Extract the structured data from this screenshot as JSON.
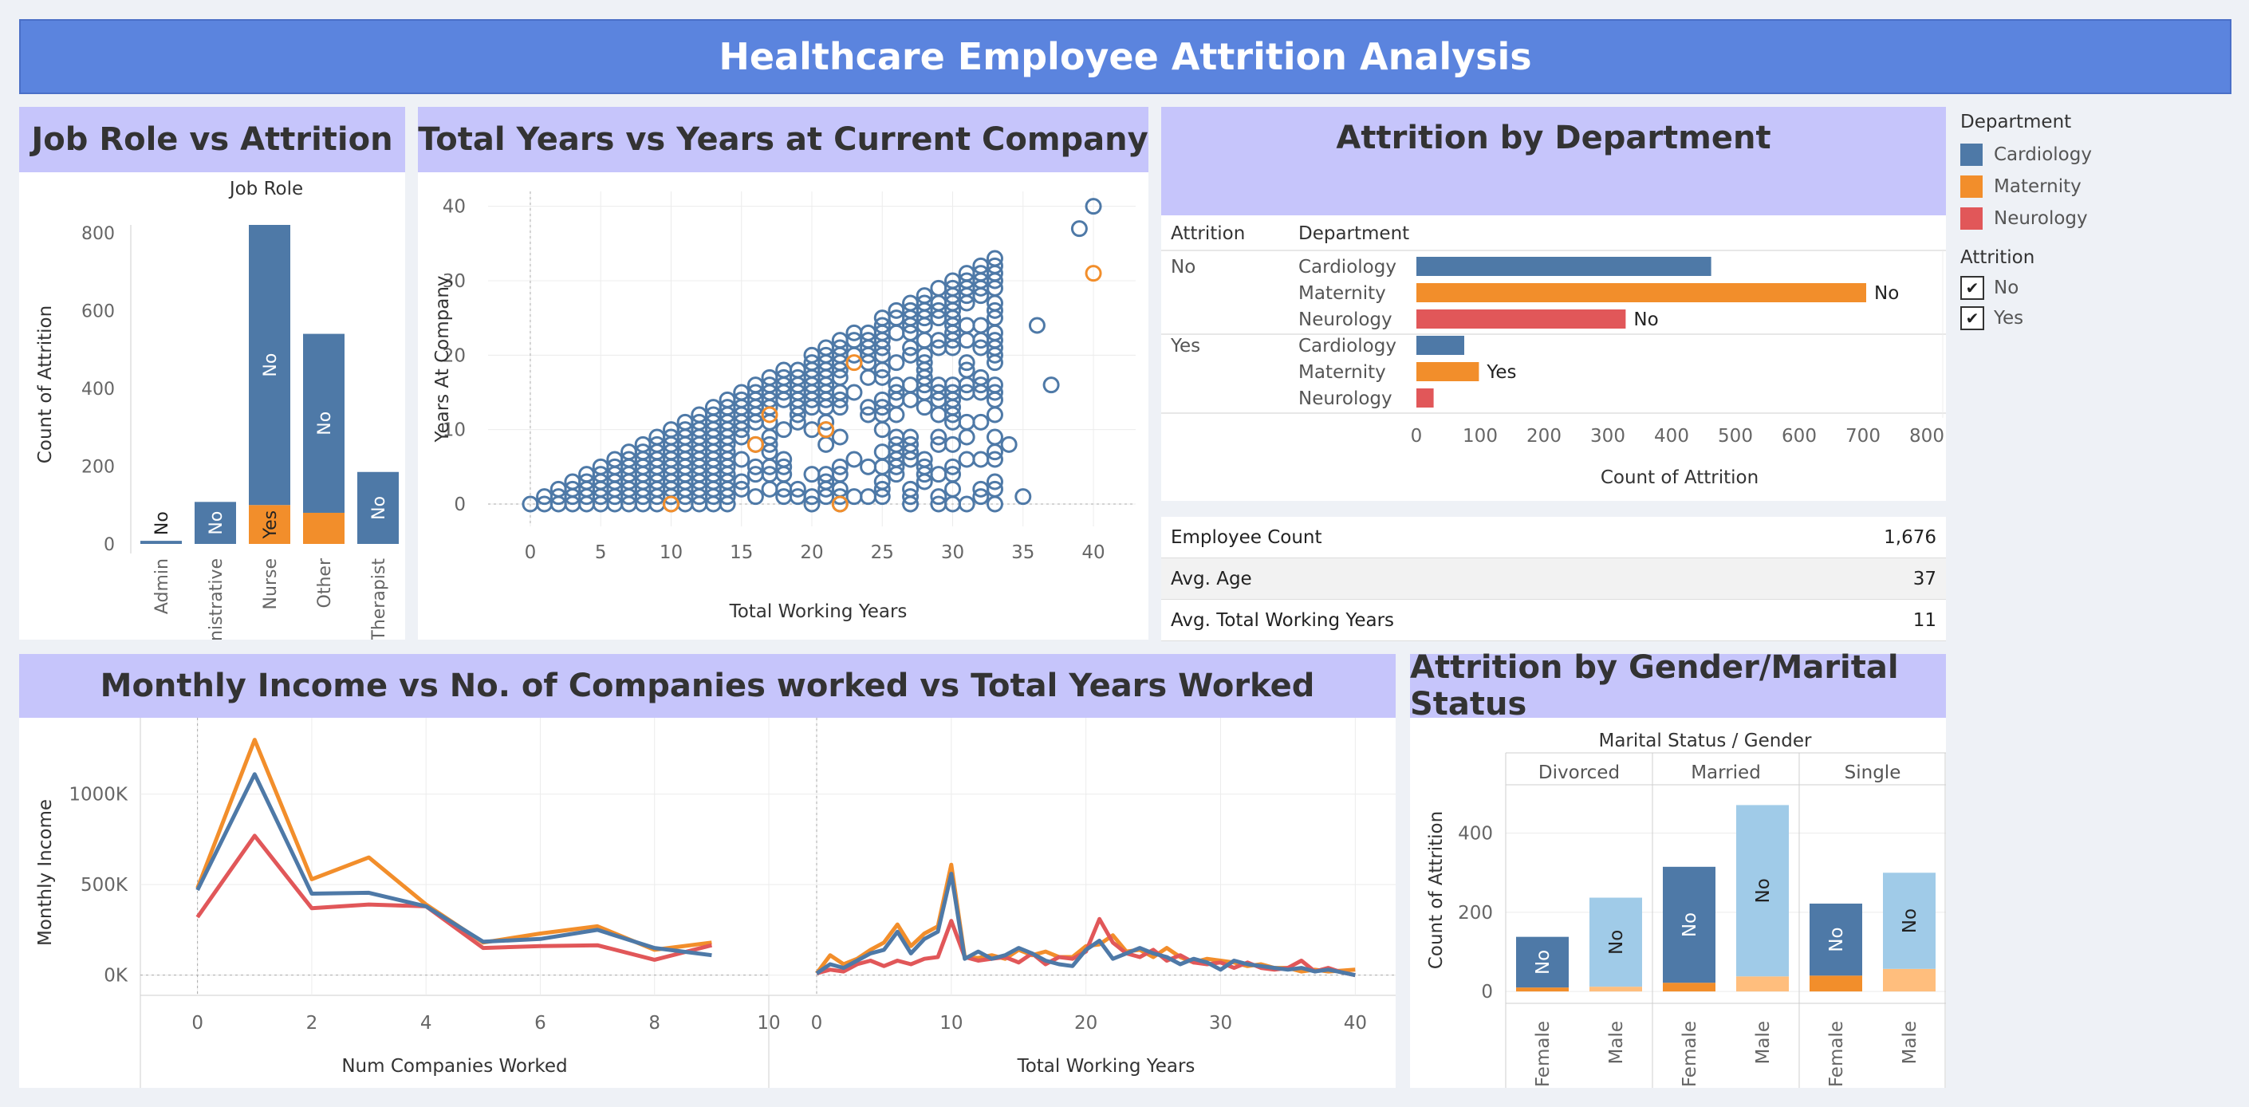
{
  "title": "Healthcare Employee Attrition Analysis",
  "colors": {
    "cardiology": "#4e79a7",
    "maternity": "#f28e2b",
    "neurology": "#e15759",
    "male_no": "#a0cbe8",
    "male_yes": "#ffbe7d",
    "banner": "#5b84de",
    "panel_title": "#c6c5fb"
  },
  "panels": {
    "job_role": "Job Role vs Attrition",
    "scatter": "Total Years vs Years at Current Company",
    "department": "Attrition by Department",
    "income": "Monthly Income vs No. of Companies worked vs Total Years Worked",
    "gender": "Attrition by Gender/Marital Status"
  },
  "legend": {
    "department_title": "Department",
    "departments": [
      {
        "label": "Cardiology",
        "color": "#4e79a7"
      },
      {
        "label": "Maternity",
        "color": "#f28e2b"
      },
      {
        "label": "Neurology",
        "color": "#e15759"
      }
    ],
    "attrition_title": "Attrition",
    "attrition": [
      {
        "label": "No",
        "checked": true
      },
      {
        "label": "Yes",
        "checked": true
      }
    ]
  },
  "kpis": [
    {
      "label": "Employee Count",
      "value": "1,676"
    },
    {
      "label": "Avg. Age",
      "value": "37"
    },
    {
      "label": "Avg. Total Working Years",
      "value": "11"
    }
  ],
  "chart_data": [
    {
      "id": "job_role",
      "type": "bar",
      "stacked": true,
      "header": "Job Role",
      "ylabel": "Count of Attrition",
      "ylim": [
        0,
        820
      ],
      "yticks": [
        0,
        200,
        400,
        600,
        800
      ],
      "categories": [
        "Admin",
        "Administrative",
        "Nurse",
        "Other",
        "Therapist"
      ],
      "series": [
        {
          "name": "No",
          "values": [
            8,
            108,
            720,
            460,
            185
          ],
          "label": "No",
          "color": "#4e79a7"
        },
        {
          "name": "Yes",
          "values": [
            0,
            0,
            100,
            80,
            0
          ],
          "label": "Yes",
          "color": "#f28e2b"
        }
      ]
    },
    {
      "id": "scatter",
      "type": "scatter",
      "xlabel": "Total Working Years",
      "ylabel": "Years At Company",
      "xlim": [
        -3,
        43
      ],
      "ylim": [
        -3,
        42
      ],
      "xticks": [
        0,
        5,
        10,
        15,
        20,
        25,
        30,
        35,
        40
      ],
      "yticks": [
        0,
        10,
        20,
        30,
        40
      ],
      "outliers": [
        [
          28,
          22
        ],
        [
          30,
          25
        ],
        [
          31,
          15
        ],
        [
          33,
          19
        ],
        [
          34,
          8
        ],
        [
          35,
          1
        ],
        [
          36,
          24
        ],
        [
          37,
          16
        ],
        [
          39,
          37
        ],
        [
          40,
          40
        ]
      ],
      "orange_points": [
        [
          10,
          0
        ],
        [
          16,
          8
        ],
        [
          21,
          10
        ],
        [
          22,
          0
        ],
        [
          23,
          19
        ],
        [
          40,
          31
        ],
        [
          17,
          12
        ]
      ]
    },
    {
      "id": "department",
      "type": "bar",
      "orientation": "horizontal",
      "col_headers": [
        "Attrition",
        "Department"
      ],
      "xlabel": "Count of Attrition",
      "xlim": [
        0,
        800
      ],
      "xticks": [
        0,
        100,
        200,
        300,
        400,
        500,
        600,
        700,
        800
      ],
      "groups": [
        {
          "attrition": "No",
          "rows": [
            {
              "department": "Cardiology",
              "value": 462,
              "color": "#4e79a7",
              "label": ""
            },
            {
              "department": "Maternity",
              "value": 705,
              "color": "#f28e2b",
              "label": "No"
            },
            {
              "department": "Neurology",
              "value": 328,
              "color": "#e15759",
              "label": "No"
            }
          ]
        },
        {
          "attrition": "Yes",
          "rows": [
            {
              "department": "Cardiology",
              "value": 75,
              "color": "#4e79a7",
              "label": ""
            },
            {
              "department": "Maternity",
              "value": 98,
              "color": "#f28e2b",
              "label": "Yes"
            },
            {
              "department": "Neurology",
              "value": 27,
              "color": "#e15759",
              "label": ""
            }
          ]
        }
      ]
    },
    {
      "id": "income_companies",
      "type": "line",
      "xlabel": "Num Companies Worked",
      "ylabel": "Monthly Income",
      "xlim": [
        -1,
        10
      ],
      "ylim": [
        -50000,
        1360000
      ],
      "xticks": [
        0,
        2,
        4,
        6,
        8,
        10
      ],
      "yticks": [
        {
          "v": 0,
          "label": "0K"
        },
        {
          "v": 500000,
          "label": "500K"
        },
        {
          "v": 1000000,
          "label": "1000K"
        }
      ],
      "x": [
        0,
        1,
        2,
        3,
        4,
        5,
        6,
        7,
        8,
        9
      ],
      "series": [
        {
          "name": "Maternity",
          "color": "#f28e2b",
          "values": [
            480000,
            1300000,
            530000,
            650000,
            390000,
            180000,
            230000,
            270000,
            140000,
            180000
          ]
        },
        {
          "name": "Neurology",
          "color": "#e15759",
          "values": [
            320000,
            770000,
            370000,
            390000,
            380000,
            150000,
            160000,
            165000,
            85000,
            165000
          ]
        },
        {
          "name": "Cardiology",
          "color": "#4e79a7",
          "values": [
            470000,
            1110000,
            450000,
            455000,
            380000,
            185000,
            200000,
            250000,
            150000,
            110000
          ]
        }
      ]
    },
    {
      "id": "income_years",
      "type": "line",
      "xlabel": "Total Working Years",
      "xlim": [
        0,
        43
      ],
      "ylim": [
        -50000,
        1360000
      ],
      "xticks": [
        0,
        10,
        20,
        30,
        40
      ],
      "x": [
        0,
        1,
        2,
        3,
        4,
        5,
        6,
        7,
        8,
        9,
        10,
        11,
        12,
        13,
        14,
        15,
        16,
        17,
        18,
        19,
        20,
        21,
        22,
        23,
        24,
        25,
        26,
        27,
        28,
        29,
        30,
        31,
        32,
        33,
        34,
        35,
        36,
        37,
        38,
        39,
        40
      ],
      "series": [
        {
          "name": "Maternity",
          "color": "#f28e2b",
          "values": [
            10000,
            110000,
            60000,
            90000,
            140000,
            180000,
            280000,
            160000,
            230000,
            270000,
            610000,
            100000,
            95000,
            110000,
            90000,
            140000,
            110000,
            130000,
            100000,
            100000,
            160000,
            170000,
            220000,
            130000,
            140000,
            100000,
            150000,
            100000,
            70000,
            90000,
            80000,
            70000,
            50000,
            60000,
            40000,
            40000,
            20000,
            30000,
            20000,
            25000,
            30000
          ]
        },
        {
          "name": "Neurology",
          "color": "#e15759",
          "values": [
            10000,
            30000,
            20000,
            60000,
            80000,
            50000,
            80000,
            60000,
            90000,
            100000,
            300000,
            100000,
            80000,
            90000,
            100000,
            70000,
            120000,
            60000,
            100000,
            90000,
            130000,
            310000,
            180000,
            120000,
            100000,
            140000,
            80000,
            110000,
            70000,
            60000,
            70000,
            40000,
            70000,
            40000,
            30000,
            40000,
            80000,
            20000,
            40000,
            15000,
            0
          ]
        },
        {
          "name": "Cardiology",
          "color": "#4e79a7",
          "values": [
            10000,
            60000,
            40000,
            80000,
            120000,
            140000,
            240000,
            120000,
            200000,
            240000,
            560000,
            90000,
            130000,
            90000,
            110000,
            150000,
            120000,
            80000,
            60000,
            50000,
            140000,
            190000,
            90000,
            120000,
            150000,
            120000,
            100000,
            60000,
            90000,
            70000,
            30000,
            80000,
            60000,
            50000,
            40000,
            30000,
            40000,
            20000,
            30000,
            15000,
            0
          ]
        }
      ]
    },
    {
      "id": "gender",
      "type": "bar",
      "stacked": true,
      "header": "Marital Status  /  Gender",
      "ylabel": "Count of Attrition",
      "ylim": [
        -30,
        490
      ],
      "yticks": [
        0,
        200,
        400
      ],
      "groups": [
        {
          "marital": "Divorced",
          "bars": [
            {
              "gender": "Female",
              "no": 128,
              "yes": 10,
              "label": "No"
            },
            {
              "gender": "Male",
              "no": 225,
              "yes": 12,
              "label": "No"
            }
          ]
        },
        {
          "marital": "Married",
          "bars": [
            {
              "gender": "Female",
              "no": 293,
              "yes": 22,
              "label": "No"
            },
            {
              "gender": "Male",
              "no": 433,
              "yes": 38,
              "label": "No"
            }
          ]
        },
        {
          "marital": "Single",
          "bars": [
            {
              "gender": "Female",
              "no": 182,
              "yes": 40,
              "label": "No"
            },
            {
              "gender": "Male",
              "no": 243,
              "yes": 57,
              "label": "No"
            }
          ]
        }
      ]
    }
  ]
}
